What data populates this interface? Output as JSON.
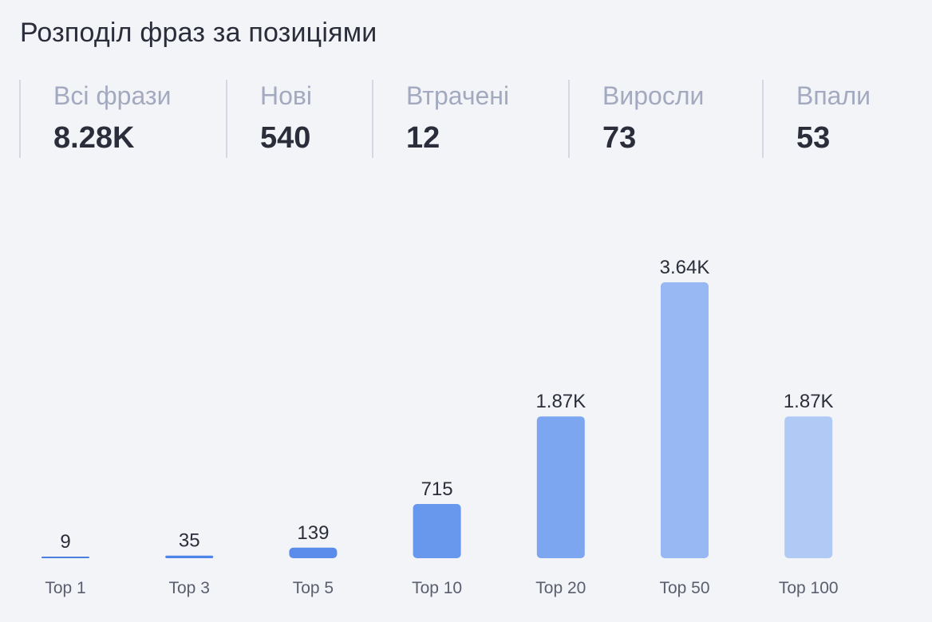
{
  "title": "Розподіл фраз за позиціями",
  "stats": [
    {
      "label": "Всі фрази",
      "value": "8.28K"
    },
    {
      "label": "Нові",
      "value": "540"
    },
    {
      "label": "Втрачені",
      "value": "12"
    },
    {
      "label": "Виросли",
      "value": "73"
    },
    {
      "label": "Впали",
      "value": "53"
    }
  ],
  "chart_data": {
    "type": "bar",
    "title": "Розподіл фраз за позиціями",
    "xlabel": "",
    "ylabel": "",
    "grid": false,
    "categories": [
      "Top 1",
      "Top 3",
      "Top 5",
      "Top 10",
      "Top 20",
      "Top 50",
      "Top 100"
    ],
    "values": [
      9,
      35,
      139,
      715,
      1870,
      3640,
      1870
    ],
    "value_labels": [
      "9",
      "35",
      "139",
      "715",
      "1.87K",
      "3.64K",
      "1.87K"
    ],
    "colors": [
      "#4a7ee0",
      "#4f84e8",
      "#5c8ceb",
      "#6798ee",
      "#7ca7f0",
      "#97b8f2",
      "#b0caf5"
    ]
  }
}
